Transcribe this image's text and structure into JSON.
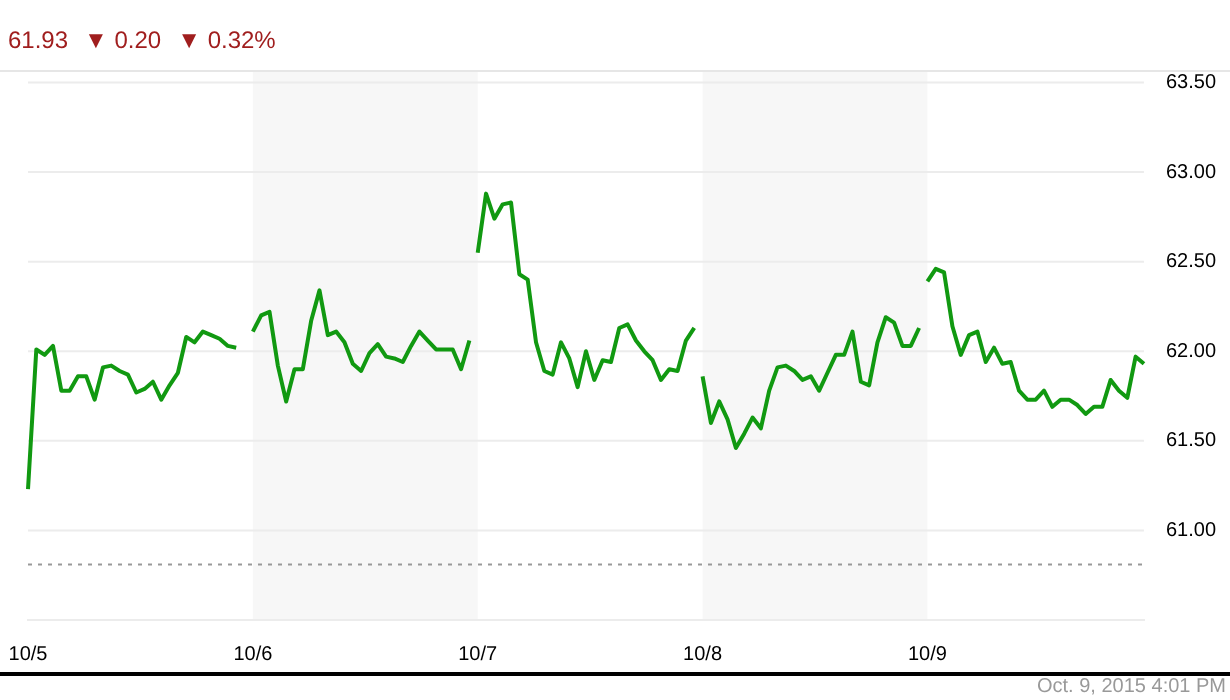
{
  "chart_data": {
    "type": "line",
    "annotations": [
      "61.93",
      "▼ 0.20",
      "▼ 0.32%",
      "Oct. 9, 2015 4:01 PM"
    ],
    "categories": [
      "10/5",
      null,
      null,
      null,
      null,
      null,
      null,
      null,
      null,
      null,
      null,
      null,
      null,
      null,
      null,
      null,
      null,
      null,
      null,
      null,
      null,
      null,
      null,
      null,
      null,
      null,
      null,
      "10/6",
      null,
      null,
      null,
      null,
      null,
      null,
      null,
      null,
      null,
      null,
      null,
      null,
      null,
      null,
      null,
      null,
      null,
      null,
      null,
      null,
      null,
      null,
      null,
      null,
      null,
      null,
      "10/7",
      null,
      null,
      null,
      null,
      null,
      null,
      null,
      null,
      null,
      null,
      null,
      null,
      null,
      null,
      null,
      null,
      null,
      null,
      null,
      null,
      null,
      null,
      null,
      null,
      null,
      null,
      "10/8",
      null,
      null,
      null,
      null,
      null,
      null,
      null,
      null,
      null,
      null,
      null,
      null,
      null,
      null,
      null,
      null,
      null,
      null,
      null,
      null,
      null,
      null,
      null,
      null,
      null,
      null,
      "10/9",
      null,
      null,
      null,
      null,
      null,
      null,
      null,
      null,
      null,
      null,
      null,
      null,
      null,
      null,
      null,
      null,
      null,
      null,
      null,
      null,
      null,
      null,
      null,
      null,
      null,
      null
    ],
    "ylim": [
      60.5,
      63.57
    ],
    "yticks": [
      {
        "value": 60.5,
        "label": null
      },
      {
        "value": 61,
        "label": "61.00"
      },
      {
        "value": 61.5,
        "label": "61.50"
      },
      {
        "value": 62,
        "label": "62.00"
      },
      {
        "value": 62.5,
        "label": "62.50"
      },
      {
        "value": 63,
        "label": "63.00"
      },
      {
        "value": 63.5,
        "label": "63.50"
      }
    ],
    "grid": "y",
    "marker": "none",
    "line_style": "solid",
    "bands": [
      {
        "axis": "x",
        "from": "10/6",
        "to": "10/7",
        "color": "#f7f7f7"
      },
      {
        "axis": "x",
        "from": "10/8",
        "to": "10/9",
        "color": "#f7f7f7"
      }
    ],
    "ref_lines": [
      {
        "axis": "y",
        "value": 60.81,
        "color": "#999999",
        "line_style": "dotted"
      }
    ],
    "series": [
      {
        "color": "#119911",
        "values": [
          61.23,
          62.01,
          61.98,
          62.03,
          61.78,
          61.78,
          61.86,
          61.86,
          61.73,
          61.91,
          61.92,
          61.89,
          61.87,
          61.77,
          61.79,
          61.83,
          61.73,
          61.81,
          61.88,
          62.08,
          62.05,
          62.11,
          62.09,
          62.07,
          62.03,
          62.02,
          null,
          null,
          null,
          null,
          null,
          null,
          null,
          null,
          null,
          null,
          null,
          null,
          null,
          null,
          null,
          null,
          null,
          null,
          null,
          null,
          null,
          null,
          null,
          null,
          null,
          null,
          null,
          null,
          null,
          null,
          null,
          null,
          null,
          null,
          null,
          null,
          null,
          null,
          null,
          null,
          null,
          null,
          null,
          null,
          null,
          null,
          null,
          null,
          null,
          null,
          null,
          null,
          null,
          null,
          null,
          null,
          null,
          null,
          null,
          null,
          null,
          null,
          null,
          null,
          null,
          null,
          null,
          null,
          null,
          null,
          null,
          null,
          null,
          null,
          null,
          null,
          null,
          null,
          null,
          null,
          null,
          null,
          null,
          null,
          null,
          null,
          null,
          null,
          null,
          null,
          null,
          null,
          null,
          null,
          null,
          null,
          null,
          null,
          null,
          null,
          null,
          null,
          null,
          null,
          null,
          null,
          null,
          null,
          null
        ]
      },
      {
        "color": "#119911",
        "values": [
          null,
          null,
          null,
          null,
          null,
          null,
          null,
          null,
          null,
          null,
          null,
          null,
          null,
          null,
          null,
          null,
          null,
          null,
          null,
          null,
          null,
          null,
          null,
          null,
          null,
          null,
          null,
          62.11,
          62.2,
          62.22,
          61.92,
          61.72,
          61.9,
          61.9,
          62.17,
          62.34,
          62.09,
          62.11,
          62.05,
          61.93,
          61.89,
          61.99,
          62.04,
          61.97,
          61.96,
          61.94,
          62.03,
          62.11,
          62.06,
          62.01,
          62.01,
          62.01,
          61.9,
          62.06,
          null,
          null,
          null,
          null,
          null,
          null,
          null,
          null,
          null,
          null,
          null,
          null,
          null,
          null,
          null,
          null,
          null,
          null,
          null,
          null,
          null,
          null,
          null,
          null,
          null,
          null,
          null,
          null,
          null,
          null,
          null,
          null,
          null,
          null,
          null,
          null,
          null,
          null,
          null,
          null,
          null,
          null,
          null,
          null,
          null,
          null,
          null,
          null,
          null,
          null,
          null,
          null,
          null,
          null,
          null,
          null,
          null,
          null,
          null,
          null,
          null,
          null,
          null,
          null,
          null,
          null,
          null,
          null,
          null,
          null,
          null,
          null,
          null,
          null,
          null,
          null,
          null,
          null,
          null,
          null,
          null
        ]
      },
      {
        "color": "#119911",
        "values": [
          null,
          null,
          null,
          null,
          null,
          null,
          null,
          null,
          null,
          null,
          null,
          null,
          null,
          null,
          null,
          null,
          null,
          null,
          null,
          null,
          null,
          null,
          null,
          null,
          null,
          null,
          null,
          null,
          null,
          null,
          null,
          null,
          null,
          null,
          null,
          null,
          null,
          null,
          null,
          null,
          null,
          null,
          null,
          null,
          null,
          null,
          null,
          null,
          null,
          null,
          null,
          null,
          null,
          null,
          62.55,
          62.88,
          62.74,
          62.82,
          62.83,
          62.43,
          62.4,
          62.05,
          61.89,
          61.87,
          62.05,
          61.96,
          61.8,
          62,
          61.84,
          61.95,
          61.94,
          62.13,
          62.15,
          62.06,
          62,
          61.95,
          61.84,
          61.9,
          61.89,
          62.06,
          62.13,
          null,
          null,
          null,
          null,
          null,
          null,
          null,
          null,
          null,
          null,
          null,
          null,
          null,
          null,
          null,
          null,
          null,
          null,
          null,
          null,
          null,
          null,
          null,
          null,
          null,
          null,
          null,
          null,
          null,
          null,
          null,
          null,
          null,
          null,
          null,
          null,
          null,
          null,
          null,
          null,
          null,
          null,
          null,
          null,
          null,
          null,
          null,
          null,
          null,
          null,
          null,
          null,
          null,
          null
        ]
      },
      {
        "color": "#119911",
        "values": [
          null,
          null,
          null,
          null,
          null,
          null,
          null,
          null,
          null,
          null,
          null,
          null,
          null,
          null,
          null,
          null,
          null,
          null,
          null,
          null,
          null,
          null,
          null,
          null,
          null,
          null,
          null,
          null,
          null,
          null,
          null,
          null,
          null,
          null,
          null,
          null,
          null,
          null,
          null,
          null,
          null,
          null,
          null,
          null,
          null,
          null,
          null,
          null,
          null,
          null,
          null,
          null,
          null,
          null,
          null,
          null,
          null,
          null,
          null,
          null,
          null,
          null,
          null,
          null,
          null,
          null,
          null,
          null,
          null,
          null,
          null,
          null,
          null,
          null,
          null,
          null,
          null,
          null,
          null,
          null,
          null,
          61.86,
          61.6,
          61.72,
          61.62,
          61.46,
          61.54,
          61.63,
          61.57,
          61.78,
          61.91,
          61.92,
          61.89,
          61.84,
          61.86,
          61.78,
          61.88,
          61.98,
          61.98,
          62.11,
          61.83,
          61.81,
          62.05,
          62.19,
          62.16,
          62.03,
          62.03,
          62.13,
          null,
          null,
          null,
          null,
          null,
          null,
          null,
          null,
          null,
          null,
          null,
          null,
          null,
          null,
          null,
          null,
          null,
          null,
          null,
          null,
          null,
          null,
          null,
          null,
          null,
          null,
          null
        ]
      },
      {
        "color": "#119911",
        "values": [
          null,
          null,
          null,
          null,
          null,
          null,
          null,
          null,
          null,
          null,
          null,
          null,
          null,
          null,
          null,
          null,
          null,
          null,
          null,
          null,
          null,
          null,
          null,
          null,
          null,
          null,
          null,
          null,
          null,
          null,
          null,
          null,
          null,
          null,
          null,
          null,
          null,
          null,
          null,
          null,
          null,
          null,
          null,
          null,
          null,
          null,
          null,
          null,
          null,
          null,
          null,
          null,
          null,
          null,
          null,
          null,
          null,
          null,
          null,
          null,
          null,
          null,
          null,
          null,
          null,
          null,
          null,
          null,
          null,
          null,
          null,
          null,
          null,
          null,
          null,
          null,
          null,
          null,
          null,
          null,
          null,
          null,
          null,
          null,
          null,
          null,
          null,
          null,
          null,
          null,
          null,
          null,
          null,
          null,
          null,
          null,
          null,
          null,
          null,
          null,
          null,
          null,
          null,
          null,
          null,
          null,
          null,
          null,
          62.39,
          62.46,
          62.44,
          62.14,
          61.98,
          62.09,
          62.11,
          61.94,
          62.02,
          61.93,
          61.94,
          61.78,
          61.73,
          61.73,
          61.78,
          61.69,
          61.73,
          61.73,
          61.7,
          61.65,
          61.69,
          61.69,
          61.84,
          61.78,
          61.74,
          61.97,
          61.93
        ]
      }
    ]
  }
}
